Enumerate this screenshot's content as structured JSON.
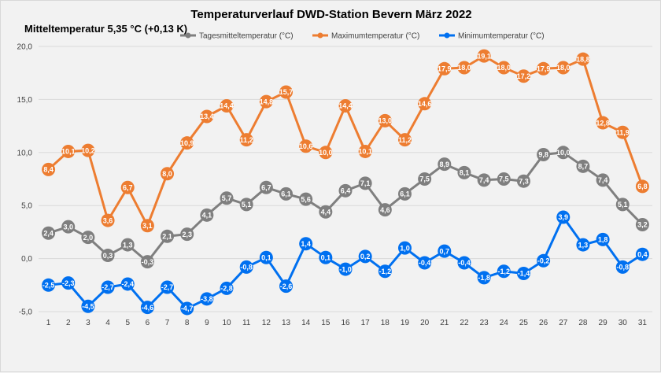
{
  "chart_data": {
    "type": "line",
    "title": "Temperaturverlauf  DWD-Station  Bevern März  2022",
    "subtitle": "Mitteltemperatur 5,35 °C (+0,13 K)",
    "xlabel": "",
    "ylabel": "",
    "x": [
      1,
      2,
      3,
      4,
      5,
      6,
      7,
      8,
      9,
      10,
      11,
      12,
      13,
      14,
      15,
      16,
      17,
      18,
      19,
      20,
      21,
      22,
      23,
      24,
      25,
      26,
      27,
      28,
      29,
      30,
      31
    ],
    "ylim": [
      -5,
      20
    ],
    "yticks": [
      "-5,0",
      "0,0",
      "5,0",
      "10,0",
      "15,0",
      "20,0"
    ],
    "grid": true,
    "legend_position": "top",
    "series": [
      {
        "name": "Tagesmitteltemperatur (°C)",
        "color": "#7f7f7f",
        "values": [
          2.4,
          3.0,
          2.0,
          0.3,
          1.3,
          -0.3,
          2.1,
          2.3,
          4.1,
          5.7,
          5.1,
          6.7,
          6.1,
          5.6,
          4.4,
          6.4,
          7.1,
          4.6,
          6.1,
          7.5,
          8.9,
          8.1,
          7.4,
          7.5,
          7.3,
          9.8,
          10.0,
          8.7,
          7.4,
          5.1,
          3.2
        ],
        "labels": [
          "2,4",
          "3,0",
          "2,0",
          "0,3",
          "1,3",
          "-0,3",
          "2,1",
          "2,3",
          "4,1",
          "5,7",
          "5,1",
          "6,7",
          "6,1",
          "5,6",
          "4,4",
          "6,4",
          "7,1",
          "4,6",
          "6,1",
          "7,5",
          "8,9",
          "8,1",
          "7,4",
          "7,5",
          "7,3",
          "9,8",
          "10,0",
          "8,7",
          "7,4",
          "5,1",
          "3,2"
        ]
      },
      {
        "name": "Maximumtemperatur (°C)",
        "color": "#ed7d31",
        "values": [
          8.4,
          10.1,
          10.2,
          3.6,
          6.7,
          3.1,
          8.0,
          10.9,
          13.4,
          14.4,
          11.2,
          14.8,
          15.7,
          10.6,
          10.0,
          14.4,
          10.1,
          13.0,
          11.2,
          14.6,
          17.9,
          18.0,
          19.1,
          18.0,
          17.2,
          17.9,
          18.0,
          18.8,
          12.8,
          11.9,
          6.8
        ],
        "labels": [
          "8,4",
          "10,1",
          "10,2",
          "3,6",
          "6,7",
          "3,1",
          "8,0",
          "10,9",
          "13,4",
          "14,4",
          "11,2",
          "14,8",
          "15,7",
          "10,6",
          "10,0",
          "14,4",
          "10,1",
          "13,0",
          "11,2",
          "14,6",
          "17,9",
          "18,0",
          "19,1",
          "18,0",
          "17,2",
          "17,9",
          "18,0",
          "18,8",
          "12,8",
          "11,9",
          "6,8"
        ]
      },
      {
        "name": "Minimumtemperatur (°C)",
        "color": "#0070f0",
        "values": [
          -2.5,
          -2.3,
          -4.5,
          -2.7,
          -2.4,
          -4.6,
          -2.7,
          -4.7,
          -3.8,
          -2.8,
          -0.8,
          0.1,
          -2.6,
          1.4,
          0.1,
          -1.0,
          0.2,
          -1.2,
          1.0,
          -0.4,
          0.7,
          -0.4,
          -1.8,
          -1.2,
          -1.4,
          -0.2,
          3.9,
          1.3,
          1.8,
          -0.8,
          0.4
        ],
        "labels": [
          "-2,5",
          "-2,3",
          "-4,5",
          "-2,7",
          "-2,4",
          "-4,6",
          "-2,7",
          "-4,7",
          "-3,8",
          "-2,8",
          "-0,8",
          "0,1",
          "-2,6",
          "1,4",
          "0,1",
          "-1,0",
          "0,2",
          "-1,2",
          "1,0",
          "-0,4",
          "0,7",
          "-0,4",
          "-1,8",
          "-1,2",
          "-1,4",
          "-0,2",
          "3,9",
          "1,3",
          "1,8",
          "-0,8",
          "0,4"
        ]
      }
    ]
  }
}
